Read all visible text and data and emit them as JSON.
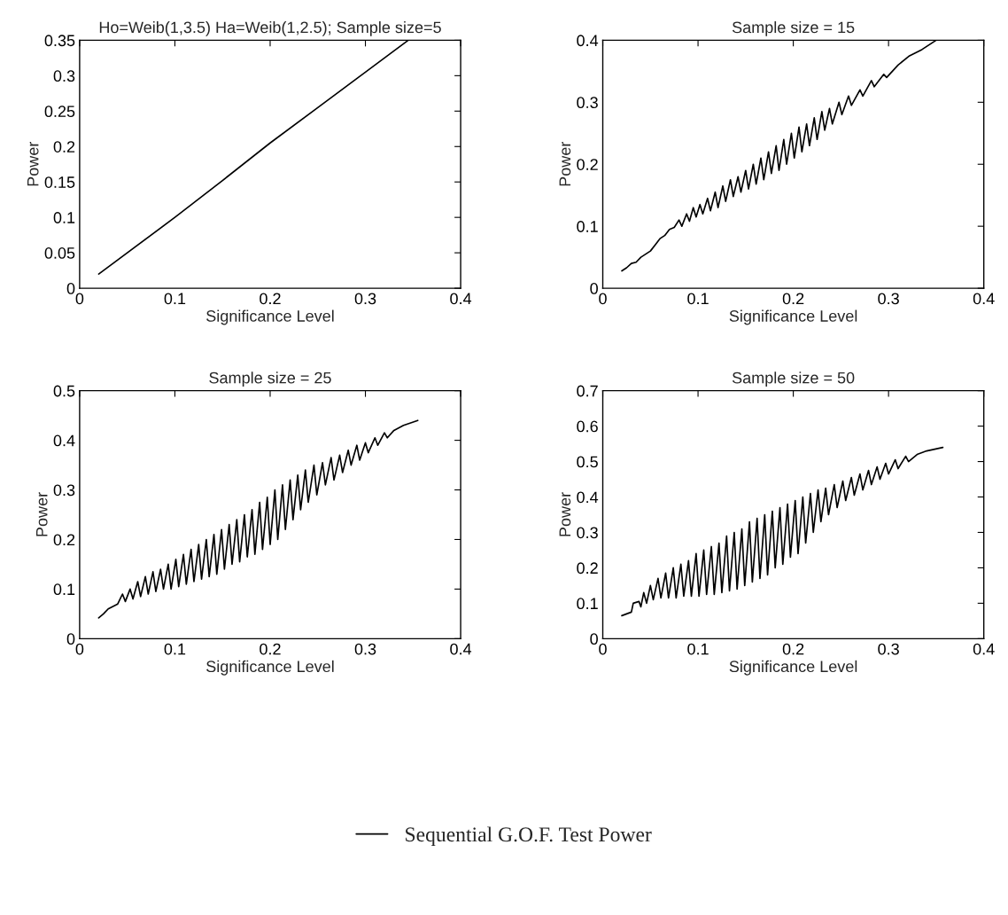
{
  "chart_data": [
    {
      "type": "line",
      "title": "Ho=Weib(1,3.5) Ha=Weib(1,2.5); Sample size=5",
      "xlabel": "Significance Level",
      "ylabel": "Power",
      "xlim": [
        0,
        0.4
      ],
      "xticks": [
        0,
        0.1,
        0.2,
        0.3,
        0.4
      ],
      "ylim": [
        0,
        0.35
      ],
      "yticks": [
        0,
        0.05,
        0.1,
        0.15,
        0.2,
        0.25,
        0.3,
        0.35
      ],
      "grid": false,
      "legend": "bottom",
      "series": [
        {
          "name": "Sequential G.O.F. Test Power",
          "color": "#000000",
          "x": [
            0.02,
            0.1,
            0.15,
            0.2,
            0.25,
            0.3,
            0.345
          ],
          "values": [
            0.02,
            0.1,
            0.152,
            0.205,
            0.255,
            0.305,
            0.35
          ]
        }
      ]
    },
    {
      "type": "line",
      "title": "Sample size = 15",
      "xlabel": "Significance Level",
      "ylabel": "Power",
      "xlim": [
        0,
        0.4
      ],
      "xticks": [
        0,
        0.1,
        0.2,
        0.3,
        0.4
      ],
      "ylim": [
        0,
        0.4
      ],
      "yticks": [
        0,
        0.1,
        0.2,
        0.3,
        0.4
      ],
      "grid": false,
      "series": [
        {
          "color": "#000000",
          "x": [
            0.02,
            0.025,
            0.03,
            0.035,
            0.04,
            0.045,
            0.05,
            0.055,
            0.06,
            0.065,
            0.07,
            0.075,
            0.08,
            0.083,
            0.088,
            0.091,
            0.095,
            0.098,
            0.102,
            0.105,
            0.11,
            0.113,
            0.118,
            0.121,
            0.126,
            0.129,
            0.134,
            0.137,
            0.142,
            0.145,
            0.15,
            0.153,
            0.158,
            0.161,
            0.166,
            0.169,
            0.174,
            0.177,
            0.182,
            0.185,
            0.19,
            0.193,
            0.198,
            0.201,
            0.206,
            0.209,
            0.214,
            0.217,
            0.222,
            0.225,
            0.23,
            0.233,
            0.238,
            0.241,
            0.248,
            0.251,
            0.258,
            0.261,
            0.27,
            0.273,
            0.282,
            0.285,
            0.295,
            0.298,
            0.31,
            0.322,
            0.335,
            0.35
          ],
          "values": [
            0.028,
            0.033,
            0.04,
            0.042,
            0.05,
            0.055,
            0.06,
            0.07,
            0.08,
            0.085,
            0.095,
            0.098,
            0.11,
            0.1,
            0.12,
            0.108,
            0.13,
            0.115,
            0.135,
            0.12,
            0.145,
            0.125,
            0.155,
            0.13,
            0.165,
            0.14,
            0.175,
            0.148,
            0.18,
            0.155,
            0.19,
            0.16,
            0.2,
            0.168,
            0.21,
            0.175,
            0.22,
            0.185,
            0.23,
            0.19,
            0.24,
            0.2,
            0.25,
            0.21,
            0.26,
            0.22,
            0.265,
            0.23,
            0.275,
            0.24,
            0.285,
            0.255,
            0.29,
            0.265,
            0.3,
            0.28,
            0.31,
            0.295,
            0.32,
            0.31,
            0.335,
            0.325,
            0.345,
            0.34,
            0.36,
            0.375,
            0.385,
            0.4
          ]
        }
      ]
    },
    {
      "type": "line",
      "title": "Sample size = 25",
      "xlabel": "Significance Level",
      "ylabel": "Power",
      "xlim": [
        0,
        0.4
      ],
      "xticks": [
        0,
        0.1,
        0.2,
        0.3,
        0.4
      ],
      "ylim": [
        0,
        0.5
      ],
      "yticks": [
        0,
        0.1,
        0.2,
        0.3,
        0.4,
        0.5
      ],
      "grid": false,
      "series": [
        {
          "color": "#000000",
          "x": [
            0.02,
            0.025,
            0.03,
            0.035,
            0.04,
            0.045,
            0.048,
            0.053,
            0.056,
            0.061,
            0.064,
            0.069,
            0.072,
            0.077,
            0.08,
            0.085,
            0.088,
            0.093,
            0.096,
            0.101,
            0.104,
            0.109,
            0.112,
            0.117,
            0.12,
            0.125,
            0.128,
            0.133,
            0.136,
            0.141,
            0.144,
            0.149,
            0.152,
            0.157,
            0.16,
            0.165,
            0.168,
            0.173,
            0.176,
            0.181,
            0.184,
            0.189,
            0.192,
            0.197,
            0.2,
            0.205,
            0.208,
            0.213,
            0.216,
            0.221,
            0.224,
            0.229,
            0.232,
            0.237,
            0.24,
            0.246,
            0.249,
            0.255,
            0.258,
            0.264,
            0.267,
            0.273,
            0.276,
            0.282,
            0.285,
            0.291,
            0.294,
            0.3,
            0.303,
            0.31,
            0.313,
            0.32,
            0.323,
            0.33,
            0.34,
            0.355
          ],
          "values": [
            0.042,
            0.05,
            0.06,
            0.065,
            0.07,
            0.09,
            0.075,
            0.1,
            0.08,
            0.115,
            0.085,
            0.125,
            0.09,
            0.135,
            0.095,
            0.14,
            0.1,
            0.15,
            0.1,
            0.16,
            0.105,
            0.17,
            0.11,
            0.18,
            0.115,
            0.19,
            0.12,
            0.2,
            0.125,
            0.21,
            0.13,
            0.22,
            0.14,
            0.23,
            0.15,
            0.24,
            0.155,
            0.25,
            0.165,
            0.26,
            0.17,
            0.275,
            0.18,
            0.285,
            0.19,
            0.3,
            0.2,
            0.31,
            0.22,
            0.32,
            0.24,
            0.33,
            0.26,
            0.34,
            0.275,
            0.35,
            0.29,
            0.355,
            0.31,
            0.365,
            0.32,
            0.37,
            0.335,
            0.38,
            0.35,
            0.39,
            0.36,
            0.395,
            0.375,
            0.405,
            0.39,
            0.415,
            0.405,
            0.42,
            0.43,
            0.44
          ]
        }
      ]
    },
    {
      "type": "line",
      "title": "Sample size = 50",
      "xlabel": "Significance Level",
      "ylabel": "Power",
      "xlim": [
        0,
        0.4
      ],
      "xticks": [
        0,
        0.1,
        0.2,
        0.3,
        0.4
      ],
      "ylim": [
        0,
        0.7
      ],
      "yticks": [
        0,
        0.1,
        0.2,
        0.3,
        0.4,
        0.5,
        0.6,
        0.7
      ],
      "grid": false,
      "series": [
        {
          "color": "#000000",
          "x": [
            0.02,
            0.025,
            0.03,
            0.032,
            0.038,
            0.04,
            0.043,
            0.046,
            0.05,
            0.053,
            0.058,
            0.061,
            0.066,
            0.069,
            0.074,
            0.077,
            0.082,
            0.085,
            0.09,
            0.093,
            0.098,
            0.101,
            0.106,
            0.109,
            0.114,
            0.117,
            0.122,
            0.125,
            0.13,
            0.133,
            0.138,
            0.141,
            0.146,
            0.149,
            0.154,
            0.157,
            0.162,
            0.165,
            0.17,
            0.173,
            0.178,
            0.181,
            0.186,
            0.189,
            0.194,
            0.197,
            0.202,
            0.205,
            0.21,
            0.213,
            0.218,
            0.221,
            0.226,
            0.229,
            0.234,
            0.237,
            0.243,
            0.246,
            0.252,
            0.255,
            0.261,
            0.264,
            0.27,
            0.273,
            0.279,
            0.282,
            0.288,
            0.291,
            0.297,
            0.3,
            0.307,
            0.31,
            0.318,
            0.321,
            0.33,
            0.34,
            0.357
          ],
          "values": [
            0.065,
            0.07,
            0.075,
            0.1,
            0.105,
            0.09,
            0.13,
            0.1,
            0.15,
            0.11,
            0.17,
            0.115,
            0.185,
            0.115,
            0.2,
            0.115,
            0.21,
            0.12,
            0.22,
            0.12,
            0.24,
            0.12,
            0.25,
            0.125,
            0.26,
            0.125,
            0.27,
            0.13,
            0.29,
            0.135,
            0.3,
            0.14,
            0.31,
            0.15,
            0.33,
            0.16,
            0.34,
            0.17,
            0.35,
            0.18,
            0.36,
            0.2,
            0.37,
            0.21,
            0.38,
            0.23,
            0.39,
            0.24,
            0.4,
            0.27,
            0.41,
            0.3,
            0.42,
            0.33,
            0.425,
            0.35,
            0.435,
            0.37,
            0.445,
            0.39,
            0.455,
            0.405,
            0.465,
            0.42,
            0.475,
            0.435,
            0.485,
            0.45,
            0.495,
            0.465,
            0.505,
            0.48,
            0.515,
            0.5,
            0.52,
            0.53,
            0.54
          ]
        }
      ]
    }
  ]
}
